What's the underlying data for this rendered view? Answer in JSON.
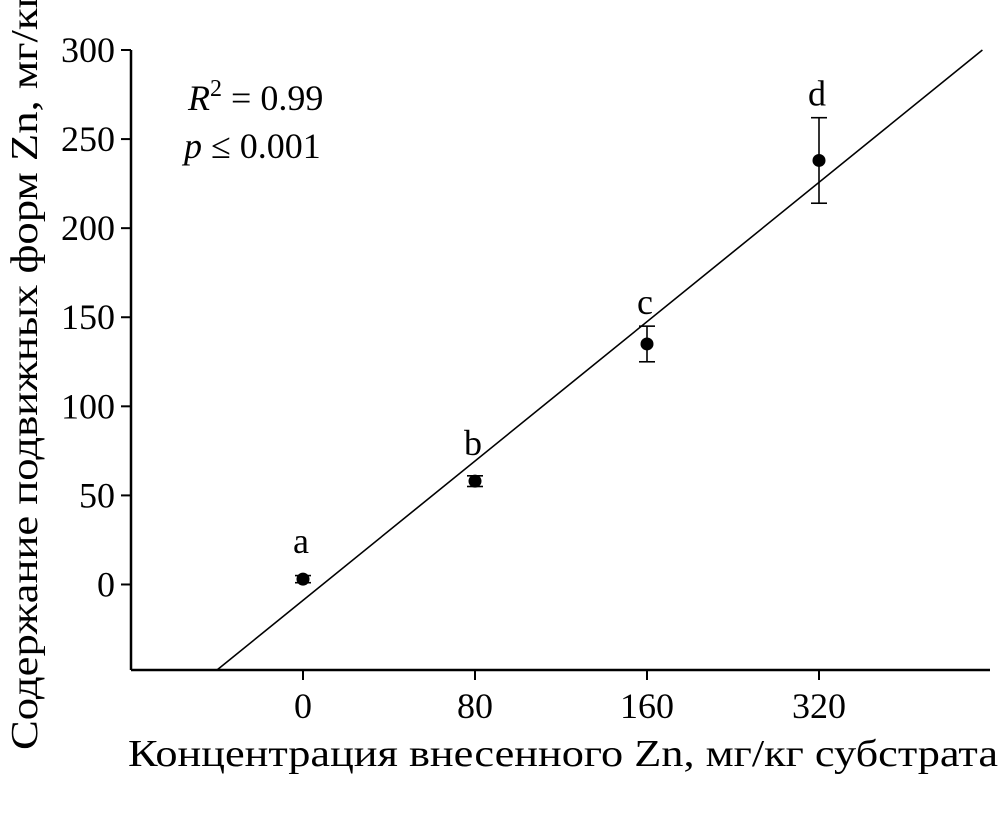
{
  "chart_data": {
    "type": "scatter",
    "title": "",
    "xlabel": "Концентрация внесенного Zn, мг/кг субстрата",
    "ylabel": "Содержание подвижных форм Zn, мг/кг",
    "categories": [
      "0",
      "80",
      "160",
      "320"
    ],
    "ylim": [
      -48,
      300
    ],
    "yticks": [
      0,
      50,
      100,
      150,
      200,
      250,
      300
    ],
    "points": [
      {
        "category": "0",
        "value": 3,
        "error": 2,
        "group": "a"
      },
      {
        "category": "80",
        "value": 58,
        "error": 3,
        "group": "b"
      },
      {
        "category": "160",
        "value": 135,
        "error": 10,
        "group": "c"
      },
      {
        "category": "320",
        "value": 238,
        "error": 24,
        "group": "d"
      }
    ],
    "trendline": {
      "start": [
        -0.5,
        -48
      ],
      "end": [
        3.95,
        300
      ]
    },
    "stats": {
      "r2_label": "R",
      "r2_value": "0.99",
      "p_label": "p",
      "p_value": "0.001"
    },
    "grid": false,
    "legend": "none",
    "colors": {
      "axis": "#000000",
      "marker": "#000000",
      "line": "#000000"
    }
  }
}
